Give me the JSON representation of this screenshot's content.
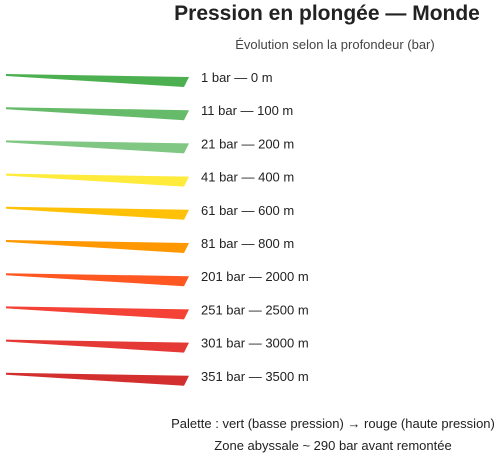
{
  "chart_data": {
    "type": "bar",
    "title": "Pression en plongée — Monde",
    "subtitle": "Évolution selon la profondeur (bar)",
    "categories": [
      "1 bar — 0 m",
      "11 bar — 100 m",
      "21 bar — 200 m",
      "41 bar — 400 m",
      "61 bar — 600 m",
      "81 bar — 800 m",
      "201 bar — 2000 m",
      "251 bar — 2500 m",
      "301 bar — 3000 m",
      "351 bar — 3500 m"
    ],
    "pressure_bar": [
      1,
      11,
      21,
      41,
      61,
      81,
      201,
      251,
      301,
      351
    ],
    "depth_m": [
      0,
      100,
      200,
      400,
      600,
      800,
      2000,
      2500,
      3000,
      3500
    ],
    "colors": [
      "#4caf50",
      "#66bb6a",
      "#81c784",
      "#ffeb3b",
      "#ffc107",
      "#ff9800",
      "#ff5722",
      "#f44336",
      "#e53935",
      "#d32f2f"
    ],
    "grid": false,
    "legend": "none"
  },
  "footer": {
    "palette_note": "Palette : vert (basse pression) → rouge (haute pression)",
    "zone_note": "Zone abyssale ~ 290 bar avant remontée"
  }
}
